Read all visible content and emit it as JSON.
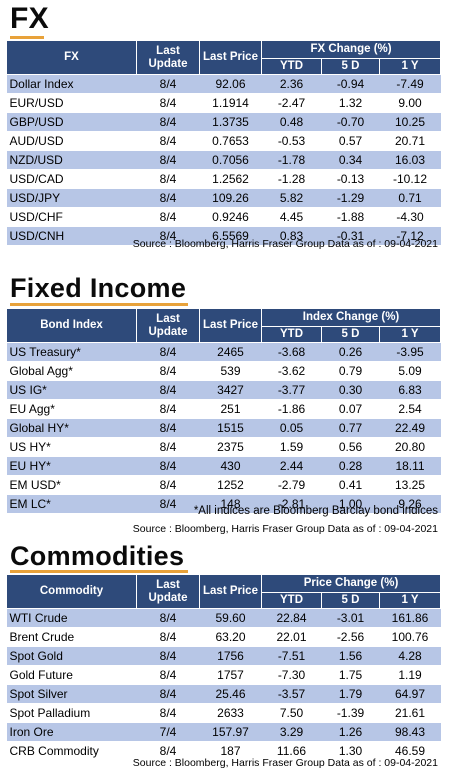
{
  "fx": {
    "title": "FX",
    "headers": {
      "name": "FX",
      "update": "Last Update",
      "price": "Last Price",
      "group": "FX Change (%)",
      "ytd": "YTD",
      "d5": "5 D",
      "y1": "1 Y"
    },
    "rows": [
      {
        "name": "Dollar Index",
        "update": "8/4",
        "price": "92.06",
        "ytd": "2.36",
        "d5": "-0.94",
        "y1": "-7.49"
      },
      {
        "name": "EUR/USD",
        "update": "8/4",
        "price": "1.1914",
        "ytd": "-2.47",
        "d5": "1.32",
        "y1": "9.00"
      },
      {
        "name": "GBP/USD",
        "update": "8/4",
        "price": "1.3735",
        "ytd": "0.48",
        "d5": "-0.70",
        "y1": "10.25"
      },
      {
        "name": "AUD/USD",
        "update": "8/4",
        "price": "0.7653",
        "ytd": "-0.53",
        "d5": "0.57",
        "y1": "20.71"
      },
      {
        "name": "NZD/USD",
        "update": "8/4",
        "price": "0.7056",
        "ytd": "-1.78",
        "d5": "0.34",
        "y1": "16.03"
      },
      {
        "name": "USD/CAD",
        "update": "8/4",
        "price": "1.2562",
        "ytd": "-1.28",
        "d5": "-0.13",
        "y1": "-10.12"
      },
      {
        "name": "USD/JPY",
        "update": "8/4",
        "price": "109.26",
        "ytd": "5.82",
        "d5": "-1.29",
        "y1": "0.71"
      },
      {
        "name": "USD/CHF",
        "update": "8/4",
        "price": "0.9246",
        "ytd": "4.45",
        "d5": "-1.88",
        "y1": "-4.30"
      },
      {
        "name": "USD/CNH",
        "update": "8/4",
        "price": "6.5569",
        "ytd": "0.83",
        "d5": "-0.31",
        "y1": "-7.12"
      }
    ],
    "source": "Source : Bloomberg, Harris Fraser Group Data as of : 09-04-2021"
  },
  "fixed_income": {
    "title": "Fixed Income",
    "headers": {
      "name": "Bond Index",
      "update": "Last Update",
      "price": "Last Price",
      "group": "Index Change (%)",
      "ytd": "YTD",
      "d5": "5 D",
      "y1": "1 Y"
    },
    "rows": [
      {
        "name": "US Treasury*",
        "update": "8/4",
        "price": "2465",
        "ytd": "-3.68",
        "d5": "0.26",
        "y1": "-3.95"
      },
      {
        "name": "Global Agg*",
        "update": "8/4",
        "price": "539",
        "ytd": "-3.62",
        "d5": "0.79",
        "y1": "5.09"
      },
      {
        "name": "US IG*",
        "update": "8/4",
        "price": "3427",
        "ytd": "-3.77",
        "d5": "0.30",
        "y1": "6.83"
      },
      {
        "name": "EU Agg*",
        "update": "8/4",
        "price": "251",
        "ytd": "-1.86",
        "d5": "0.07",
        "y1": "2.54"
      },
      {
        "name": "Global HY*",
        "update": "8/4",
        "price": "1515",
        "ytd": "0.05",
        "d5": "0.77",
        "y1": "22.49"
      },
      {
        "name": "US HY*",
        "update": "8/4",
        "price": "2375",
        "ytd": "1.59",
        "d5": "0.56",
        "y1": "20.80"
      },
      {
        "name": "EU HY*",
        "update": "8/4",
        "price": "430",
        "ytd": "2.44",
        "d5": "0.28",
        "y1": "18.11"
      },
      {
        "name": "EM USD*",
        "update": "8/4",
        "price": "1252",
        "ytd": "-2.79",
        "d5": "0.41",
        "y1": "13.25"
      },
      {
        "name": "EM LC*",
        "update": "8/4",
        "price": "148",
        "ytd": "-2.81",
        "d5": "1.00",
        "y1": "9.26"
      }
    ],
    "note": "*All indices are Bloomberg Barclay bond indices",
    "source": "Source : Bloomberg, Harris Fraser Group Data as of : 09-04-2021"
  },
  "commodities": {
    "title": "Commodities",
    "headers": {
      "name": "Commodity",
      "update": "Last Update",
      "price": "Last Price",
      "group": "Price Change (%)",
      "ytd": "YTD",
      "d5": "5 D",
      "y1": "1 Y"
    },
    "rows": [
      {
        "name": "WTI Crude",
        "update": "8/4",
        "price": "59.60",
        "ytd": "22.84",
        "d5": "-3.01",
        "y1": "161.86"
      },
      {
        "name": "Brent Crude",
        "update": "8/4",
        "price": "63.20",
        "ytd": "22.01",
        "d5": "-2.56",
        "y1": "100.76"
      },
      {
        "name": "Spot Gold",
        "update": "8/4",
        "price": "1756",
        "ytd": "-7.51",
        "d5": "1.56",
        "y1": "4.28"
      },
      {
        "name": "Gold Future",
        "update": "8/4",
        "price": "1757",
        "ytd": "-7.30",
        "d5": "1.75",
        "y1": "1.19"
      },
      {
        "name": "Spot Silver",
        "update": "8/4",
        "price": "25.46",
        "ytd": "-3.57",
        "d5": "1.79",
        "y1": "64.97"
      },
      {
        "name": "Spot Palladium",
        "update": "8/4",
        "price": "2633",
        "ytd": "7.50",
        "d5": "-1.39",
        "y1": "21.61"
      },
      {
        "name": "Iron Ore",
        "update": "7/4",
        "price": "157.97",
        "ytd": "3.29",
        "d5": "1.26",
        "y1": "98.43"
      },
      {
        "name": "CRB Commodity",
        "update": "8/4",
        "price": "187",
        "ytd": "11.66",
        "d5": "1.30",
        "y1": "46.59"
      }
    ],
    "source": "Source : Bloomberg, Harris Fraser Group Data as of : 09-04-2021"
  },
  "colors": {
    "header_bg": "#2e4a7a",
    "stripe": "#b7c6e6",
    "underline": "#e8a23a"
  }
}
